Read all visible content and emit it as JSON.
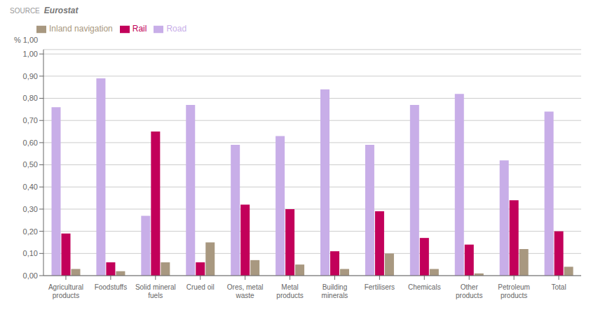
{
  "chart_data": {
    "type": "bar",
    "categories": [
      "Agricultural\nproducts",
      "Foodstuffs",
      "Solid mineral\nfuels",
      "Crued oil",
      "Ores, metal\nwaste",
      "Metal\nproducts",
      "Building\nminerals",
      "Fertilisers",
      "Chemicals",
      "Other\nproducts",
      "Petroleum\nproducts",
      "Total"
    ],
    "series": [
      {
        "name": "Road",
        "color": "#c8aee8",
        "values": [
          0.76,
          0.89,
          0.27,
          0.77,
          0.59,
          0.63,
          0.84,
          0.59,
          0.77,
          0.82,
          0.52,
          0.74
        ]
      },
      {
        "name": "Rail",
        "color": "#c2005a",
        "values": [
          0.19,
          0.06,
          0.65,
          0.06,
          0.32,
          0.3,
          0.11,
          0.29,
          0.17,
          0.14,
          0.34,
          0.2
        ]
      },
      {
        "name": "Inland navigation",
        "color": "#a89880",
        "values": [
          0.03,
          0.02,
          0.06,
          0.15,
          0.07,
          0.05,
          0.03,
          0.1,
          0.03,
          0.01,
          0.12,
          0.04
        ]
      }
    ],
    "ylabel": "% 1,00",
    "annotations": [
      "SOURCE",
      "Eurostat"
    ],
    "ylim": [
      0,
      1.02
    ],
    "yticks": [
      {
        "value": 0.0,
        "label": "0,00"
      },
      {
        "value": 0.1,
        "label": "0,10"
      },
      {
        "value": 0.2,
        "label": "0,20"
      },
      {
        "value": 0.3,
        "label": "0,30"
      },
      {
        "value": 0.4,
        "label": "0,40"
      },
      {
        "value": 0.5,
        "label": "0,50"
      },
      {
        "value": 0.6,
        "label": "0,60"
      },
      {
        "value": 0.7,
        "label": "0,70"
      },
      {
        "value": 0.8,
        "label": "0,80"
      },
      {
        "value": 0.9,
        "label": "0,90"
      },
      {
        "value": 1.0,
        "label": "1,00"
      }
    ],
    "grid": true,
    "legend": "top"
  }
}
